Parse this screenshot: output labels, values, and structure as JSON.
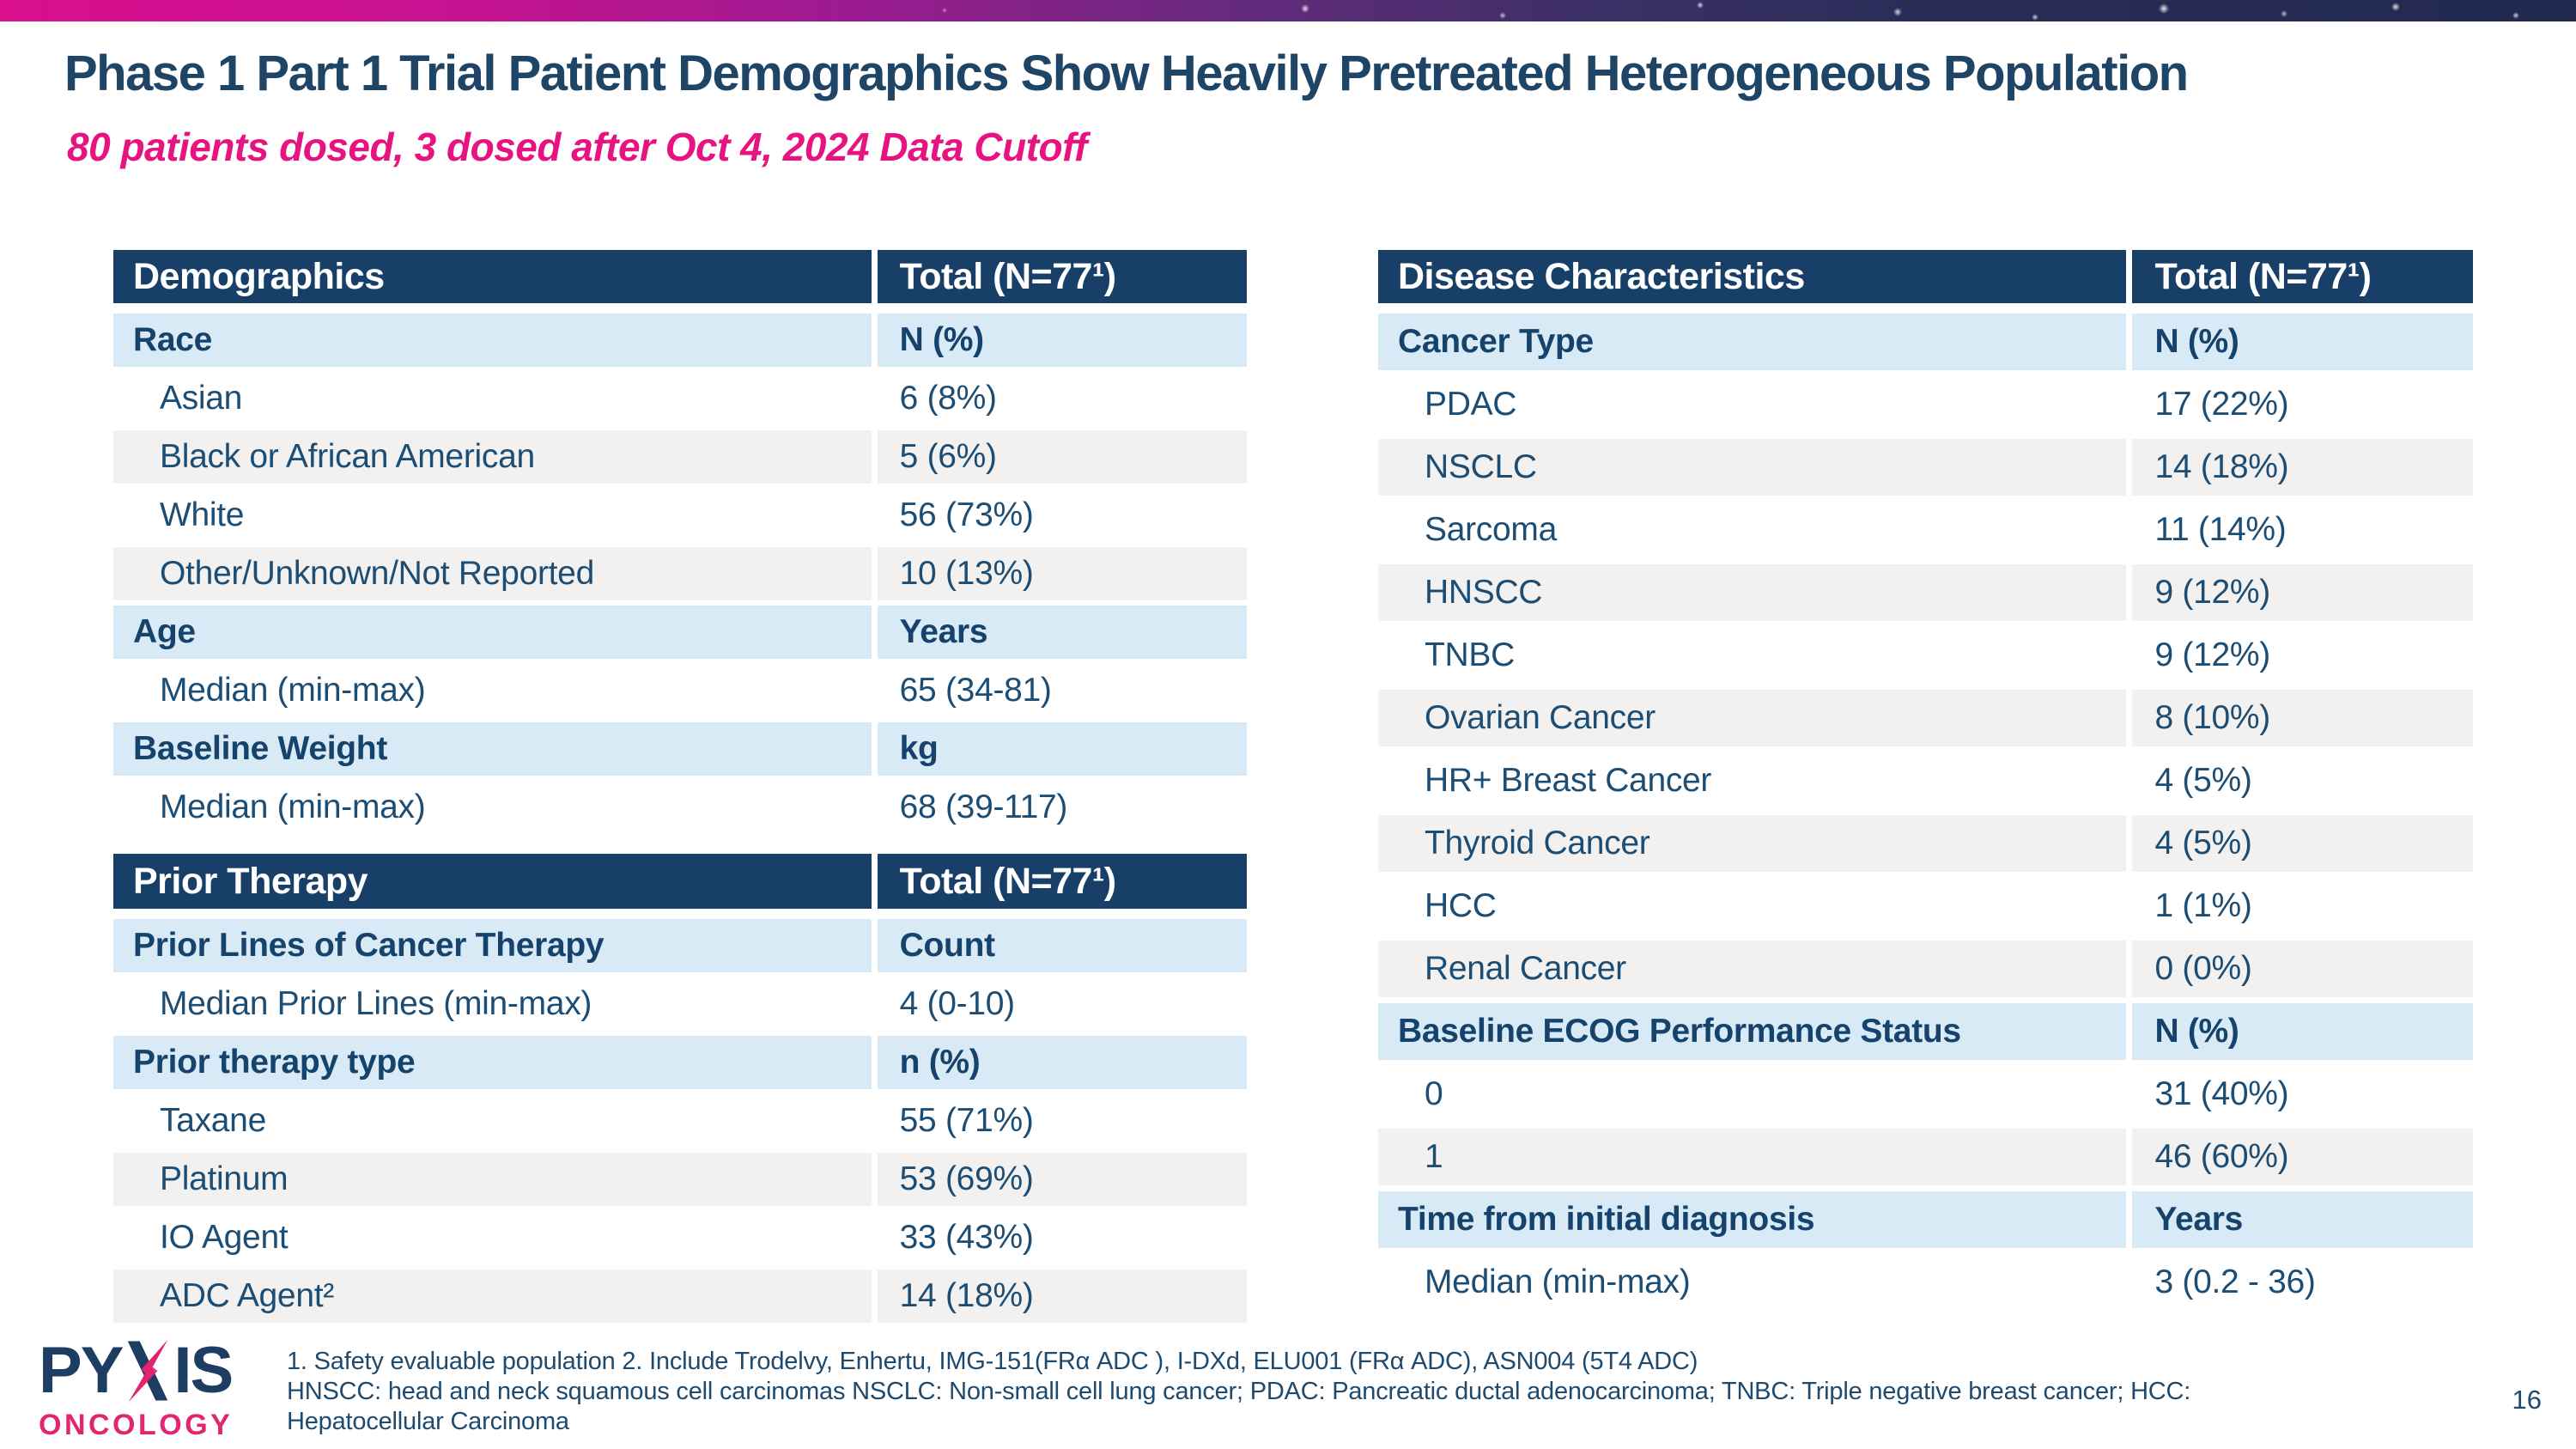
{
  "slide": {
    "title": "Phase 1 Part 1 Trial Patient Demographics Show Heavily Pretreated Heterogeneous Population",
    "subtitle": "80 patients dosed, 3 dosed after Oct 4, 2024 Data Cutoff",
    "page_number": "16",
    "colors": {
      "header_navy": "#183f68",
      "subheader_blue": "#d9eaf7",
      "row_gray": "#f2f1f0",
      "title_navy": "#1e4566",
      "accent_pink": "#e61380",
      "logo_navy": "#1e3d63",
      "logo_pink": "#e3246f"
    }
  },
  "tables": {
    "demographics": {
      "header": [
        "Demographics",
        "Total (N=77¹)"
      ],
      "rows": [
        {
          "kind": "subheader",
          "label": "Race",
          "value": "N (%)"
        },
        {
          "kind": "data",
          "label": "Asian",
          "value": "6 (8%)"
        },
        {
          "kind": "data",
          "label": "Black or African American",
          "value": "5 (6%)"
        },
        {
          "kind": "data",
          "label": "White",
          "value": "56 (73%)"
        },
        {
          "kind": "data",
          "label": "Other/Unknown/Not Reported",
          "value": "10 (13%)"
        },
        {
          "kind": "subheader",
          "label": "Age",
          "value": "Years"
        },
        {
          "kind": "data",
          "label": "Median (min-max)",
          "value": "65 (34-81)"
        },
        {
          "kind": "subheader",
          "label": "Baseline Weight",
          "value": "kg"
        },
        {
          "kind": "data",
          "label": "Median (min-max)",
          "value": "68 (39-117)"
        }
      ]
    },
    "prior_therapy": {
      "header": [
        "Prior Therapy",
        "Total (N=77¹)"
      ],
      "rows": [
        {
          "kind": "subheader",
          "label": "Prior Lines of Cancer Therapy",
          "value": "Count"
        },
        {
          "kind": "data",
          "label": "Median Prior Lines (min-max)",
          "value": "4 (0-10)"
        },
        {
          "kind": "subheader",
          "label": "Prior therapy type",
          "value": "n (%)"
        },
        {
          "kind": "data",
          "label": "Taxane",
          "value": "55 (71%)"
        },
        {
          "kind": "data",
          "label": "Platinum",
          "value": "53 (69%)"
        },
        {
          "kind": "data",
          "label": "IO Agent",
          "value": "33 (43%)"
        },
        {
          "kind": "data",
          "label": "ADC Agent²",
          "value": "14 (18%)"
        }
      ]
    },
    "disease_characteristics": {
      "header": [
        "Disease Characteristics",
        "Total (N=77¹)"
      ],
      "rows": [
        {
          "kind": "subheader",
          "label": "Cancer Type",
          "value": "N (%)"
        },
        {
          "kind": "data",
          "label": "PDAC",
          "value": "17 (22%)"
        },
        {
          "kind": "data",
          "label": "NSCLC",
          "value": "14 (18%)"
        },
        {
          "kind": "data",
          "label": "Sarcoma",
          "value": "11 (14%)"
        },
        {
          "kind": "data",
          "label": "HNSCC",
          "value": "9 (12%)"
        },
        {
          "kind": "data",
          "label": "TNBC",
          "value": "9 (12%)"
        },
        {
          "kind": "data",
          "label": "Ovarian Cancer",
          "value": "8 (10%)"
        },
        {
          "kind": "data",
          "label": "HR+ Breast Cancer",
          "value": "4 (5%)"
        },
        {
          "kind": "data",
          "label": "Thyroid Cancer",
          "value": "4 (5%)"
        },
        {
          "kind": "data",
          "label": "HCC",
          "value": "1 (1%)"
        },
        {
          "kind": "data",
          "label": "Renal Cancer",
          "value": "0 (0%)"
        },
        {
          "kind": "subheader",
          "label": "Baseline ECOG Performance Status",
          "value": "N (%)"
        },
        {
          "kind": "data",
          "label": "0",
          "value": "31 (40%)"
        },
        {
          "kind": "data",
          "label": "1",
          "value": "46 (60%)"
        },
        {
          "kind": "subheader",
          "label": "Time from initial diagnosis",
          "value": "Years"
        },
        {
          "kind": "data",
          "label": "Median (min-max)",
          "value": "3 (0.2 - 36)"
        }
      ]
    }
  },
  "footer": {
    "logo_word": "PYXIS",
    "logo_word_part1": "PY",
    "logo_word_part2": "IS",
    "logo_subword": "ONCOLOGY",
    "footnote_lines": [
      "1. Safety evaluable population 2. Include Trodelvy, Enhertu, IMG-151(FRα ADC ), I-DXd, ELU001 (FRα ADC), ASN004 (5T4 ADC)",
      "HNSCC: head and neck squamous cell carcinomas NSCLC: Non-small cell lung cancer; PDAC: Pancreatic ductal adenocarcinoma; TNBC: Triple negative breast cancer; HCC:",
      "Hepatocellular Carcinoma"
    ]
  }
}
